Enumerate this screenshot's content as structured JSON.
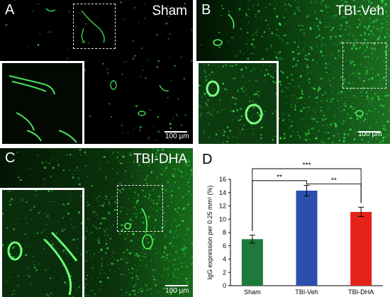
{
  "panels": [
    {
      "letter": "A",
      "condition": "Sham",
      "scale": "100 µm"
    },
    {
      "letter": "B",
      "condition": "TBI-Veh",
      "scale": "100 µm"
    },
    {
      "letter": "C",
      "condition": "TBI-DHA",
      "scale": "100 µm"
    },
    {
      "letter": "D"
    }
  ],
  "colors": {
    "sham": "#1e7a3c",
    "veh": "#2b4fae",
    "dha": "#e5231b",
    "fluor": "#3aff4a"
  },
  "chart_data": {
    "type": "bar",
    "categories": [
      "Sham",
      "TBI-Veh",
      "TBI-DHA"
    ],
    "values": [
      7.0,
      14.3,
      11.1
    ],
    "errors": [
      0.6,
      0.8,
      0.7
    ],
    "ylabel": "IgG expression per 0.25 mm² (%)",
    "ylim": [
      0,
      16
    ],
    "yticks": [
      "0",
      "2",
      "4",
      "6",
      "8",
      "10",
      "12",
      "14",
      "16"
    ],
    "significance": [
      {
        "from": "Sham",
        "to": "TBI-Veh",
        "label": "**"
      },
      {
        "from": "TBI-Veh",
        "to": "TBI-DHA",
        "label": "**"
      },
      {
        "from": "Sham",
        "to": "TBI-DHA",
        "label": "***"
      }
    ]
  }
}
